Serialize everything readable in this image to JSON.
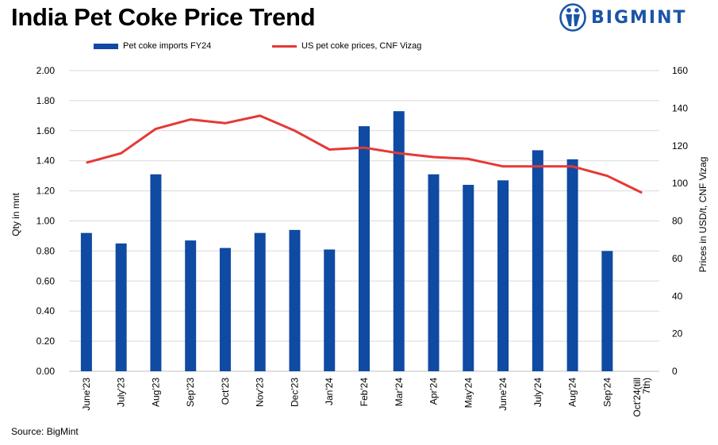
{
  "header": {
    "title": "India Pet Coke Price Trend",
    "brand": "BIGMINT"
  },
  "footer": {
    "source": "Source:  BigMint"
  },
  "chart_data": {
    "type": "bar-line",
    "categories": [
      "June'23",
      "July'23",
      "Aug'23",
      "Sep'23",
      "Oct'23",
      "Nov'23",
      "Dec'23",
      "Jan'24",
      "Feb'24",
      "Mar'24",
      "Apr'24",
      "May'24",
      "June'24",
      "July'24",
      "Aug'24",
      "Sep'24",
      "Oct'24(till 7th)"
    ],
    "series": [
      {
        "name": "Pet coke imports FY24",
        "kind": "bar",
        "axis": "left",
        "color": "#0f4aa3",
        "values": [
          0.92,
          0.85,
          1.31,
          0.87,
          0.82,
          0.92,
          0.94,
          0.81,
          1.63,
          1.73,
          1.31,
          1.24,
          1.27,
          1.47,
          1.41,
          0.8,
          null
        ]
      },
      {
        "name": "US pet coke prices, CNF Vizag",
        "kind": "line",
        "axis": "right",
        "color": "#e53935",
        "values": [
          111,
          116,
          129,
          134,
          132,
          136,
          128,
          118,
          119,
          116,
          114,
          113,
          109,
          109,
          109,
          104,
          95
        ]
      }
    ],
    "ylabel_left": "Qty in mnt",
    "ylabel_right": "Prices in USD/t, CNF Vizag",
    "ylim_left": [
      0,
      2.0
    ],
    "ylim_right": [
      0,
      160
    ],
    "yticks_left": [
      "0.00",
      "0.20",
      "0.40",
      "0.60",
      "0.80",
      "1.00",
      "1.20",
      "1.40",
      "1.60",
      "1.80",
      "2.00"
    ],
    "yticks_right": [
      "0",
      "20",
      "40",
      "60",
      "80",
      "100",
      "120",
      "140",
      "160"
    ],
    "grid": "horizontal",
    "legend": "top"
  }
}
